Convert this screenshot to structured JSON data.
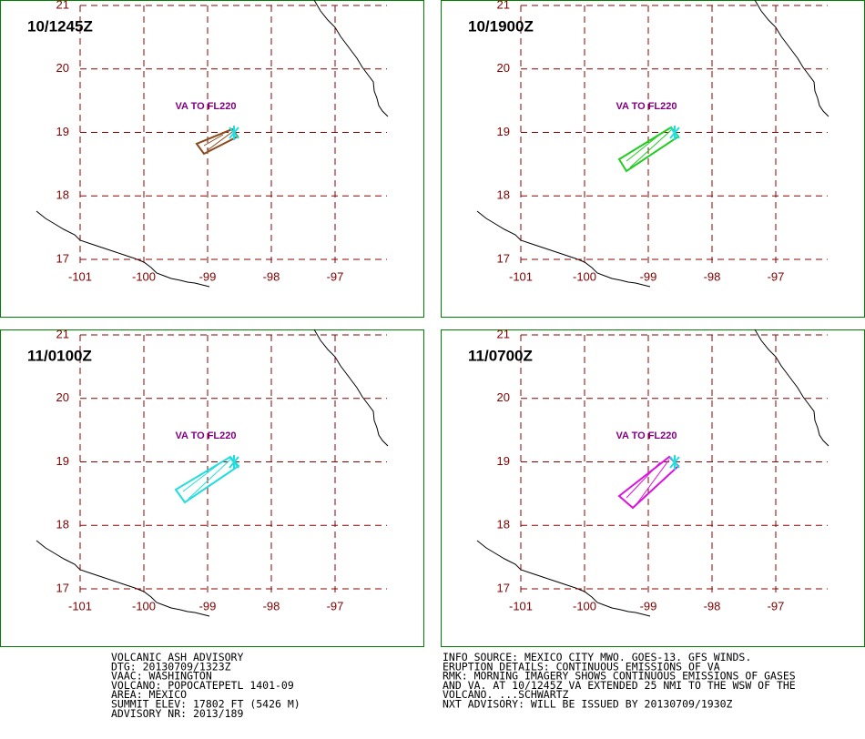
{
  "panels": [
    {
      "time": "10/1245Z",
      "label": "VA TO FL220",
      "color": "#8b4a1e"
    },
    {
      "time": "10/1900Z",
      "label": "VA TO FL220",
      "color": "#22cc22"
    },
    {
      "time": "11/0100Z",
      "label": "VA TO FL220",
      "color": "#22dddd"
    },
    {
      "time": "11/0700Z",
      "label": "VA TO FL220",
      "color": "#dd11dd"
    }
  ],
  "lat_ticks": [
    17,
    18,
    19,
    20,
    21
  ],
  "lon_ticks": [
    -101,
    -100,
    -99,
    -98,
    -97
  ],
  "advisory_left": [
    "VOLCANIC ASH ADVISORY",
    "DTG: 20130709/1323Z",
    "VAAC: WASHINGTON",
    "VOLCANO: POPOCATEPETL 1401-09",
    "AREA: MEXICO",
    "SUMMIT ELEV: 17802 FT (5426 M)",
    "ADVISORY NR: 2013/189"
  ],
  "advisory_right": [
    "INFO SOURCE: MEXICO CITY MWO. GOES-13. GFS WINDS.",
    "ERUPTION DETAILS: CONTINUOUS EMISSIONS OF VA",
    "RMK: MORNING IMAGERY SHOWS CONTINUOUS EMISSIONS OF GASES",
    "AND VA. AT 10/1245Z VA EXTENDED 25 NMI TO THE WSW OF THE",
    "VOLCANO. ...SCHWARTZ",
    "NXT ADVISORY: WILL BE ISSUED BY 20130709/1930Z"
  ]
}
